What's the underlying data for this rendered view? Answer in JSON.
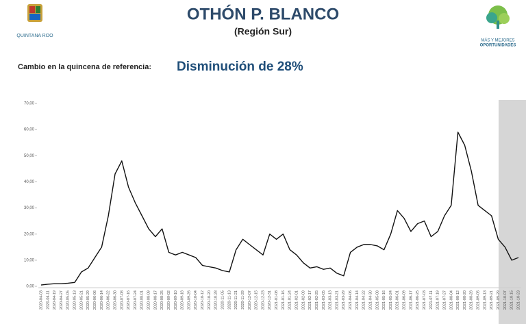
{
  "header": {
    "title": "OTHÓN P. BLANCO",
    "subtitle": "(Región Sur)",
    "change_label": "Cambio en la quincena de referencia:",
    "change_value": "Disminución de 28%",
    "left_logo": "QUINTANA ROO",
    "right_logo": [
      "MÁS Y MEJORES",
      "OPORTUNIDADES"
    ]
  },
  "chart_data": {
    "type": "line",
    "color": "#111111",
    "categories": [
      "2020-04-03",
      "2020-04-11",
      "2020-04-19",
      "2020-04-27",
      "2020-05-05",
      "2020-05-13",
      "2020-05-21",
      "2020-05-29",
      "2020-06-06",
      "2020-06-14",
      "2020-06-22",
      "2020-06-30",
      "2020-07-08",
      "2020-07-16",
      "2020-07-24",
      "2020-08-01",
      "2020-08-09",
      "2020-08-17",
      "2020-08-25",
      "2020-09-02",
      "2020-09-10",
      "2020-09-18",
      "2020-09-26",
      "2020-10-04",
      "2020-10-12",
      "2020-10-20",
      "2020-10-28",
      "2020-11-05",
      "2020-11-13",
      "2020-11-21",
      "2020-11-29",
      "2020-12-07",
      "2020-12-15",
      "2020-12-23",
      "2020-12-31",
      "2021-01-08",
      "2021-01-16",
      "2021-01-24",
      "2021-02-01",
      "2021-02-09",
      "2021-02-17",
      "2021-02-25",
      "2021-03-05",
      "2021-03-13",
      "2021-03-21",
      "2021-03-29",
      "2021-04-06",
      "2021-04-14",
      "2021-04-22",
      "2021-04-30",
      "2021-05-08",
      "2021-05-16",
      "2021-05-24",
      "2021-06-01",
      "2021-06-09",
      "2021-06-17",
      "2021-06-25",
      "2021-07-03",
      "2021-07-11",
      "2021-07-19",
      "2021-07-27",
      "2021-08-04",
      "2021-08-12",
      "2021-08-20",
      "2021-08-28",
      "2021-09-05",
      "2021-09-13",
      "2021-09-21",
      "2021-09-29",
      "2021-10-07",
      "2021-10-15",
      "2021-10-23"
    ],
    "values": [
      0.5,
      0.8,
      1,
      1,
      1.2,
      1.5,
      5.5,
      7,
      11,
      15,
      27,
      43,
      48,
      38,
      32,
      27,
      22,
      19,
      22,
      13,
      12,
      13,
      12,
      11,
      8,
      7.5,
      7,
      6,
      5.5,
      14,
      18,
      16,
      14,
      12,
      20,
      18,
      20,
      14,
      12,
      9,
      7,
      7.5,
      6.5,
      7,
      5,
      4,
      13,
      15,
      16,
      16,
      15.5,
      14,
      20,
      29,
      26,
      21,
      24,
      25,
      19,
      21,
      27,
      31,
      59,
      54,
      44,
      31,
      29,
      27,
      18,
      15,
      10,
      11
    ],
    "ylim": [
      0,
      70
    ],
    "yticks": [
      {
        "value": 0,
        "label": "0,00"
      },
      {
        "value": 10,
        "label": "10,00"
      },
      {
        "value": 20,
        "label": "20,00"
      },
      {
        "value": 30,
        "label": "30,00"
      },
      {
        "value": 40,
        "label": "40,00"
      },
      {
        "value": 50,
        "label": "50,00"
      },
      {
        "value": 60,
        "label": "60,00"
      },
      {
        "value": 70,
        "label": "70,00"
      }
    ],
    "grid": false
  }
}
